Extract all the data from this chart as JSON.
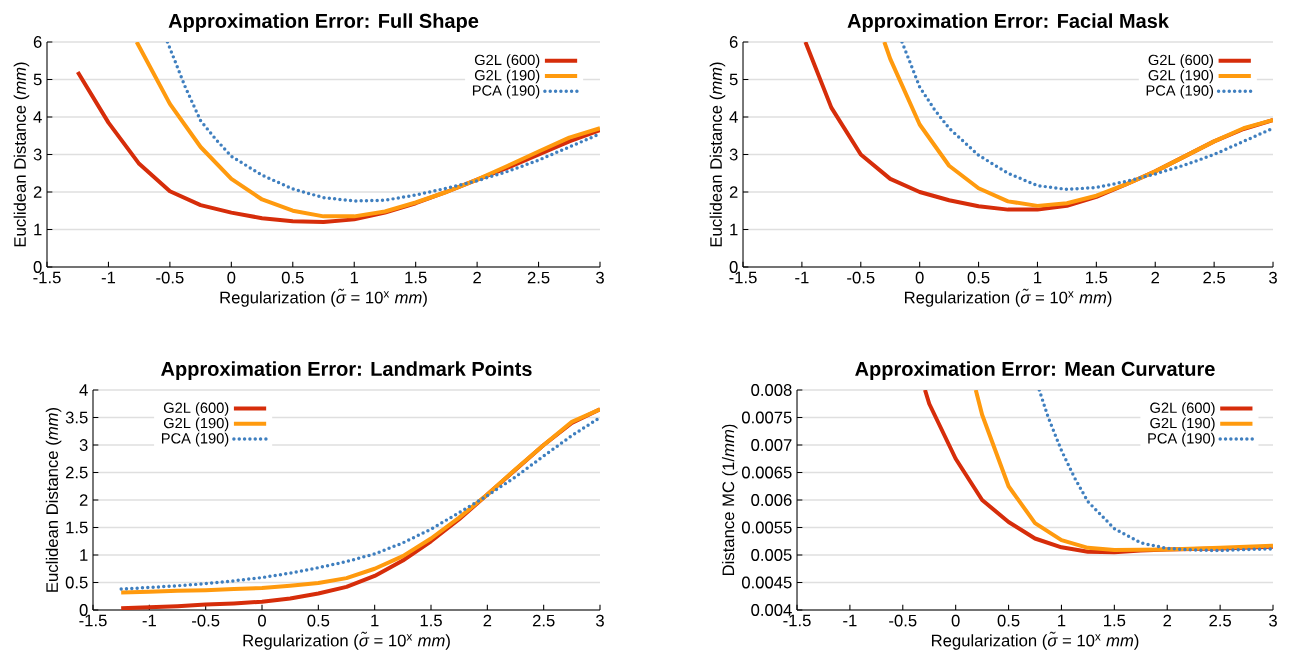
{
  "chart_data": [
    {
      "type": "line",
      "title": "Approximation Error: Full Shape",
      "xlabel": "Regularization (*σ̃* = 10$^{x}$ *mm*)",
      "ylabel": "Euclidean Distance (*mm*)",
      "xlim": [
        -1.5,
        3
      ],
      "ylim": [
        0,
        6
      ],
      "xticks": [
        -1.5,
        -1,
        -0.5,
        0,
        0.5,
        1,
        1.5,
        2,
        2.5,
        3
      ],
      "yticks": [
        0,
        1,
        2,
        3,
        4,
        5,
        6
      ],
      "grid": "y",
      "legend": "top right",
      "series": [
        {
          "name": "G2L (600)",
          "color": "#d62d0a",
          "line_style": "solid",
          "x": [
            -1.25,
            -1,
            -0.75,
            -0.5,
            -0.25,
            0,
            0.25,
            0.5,
            0.75,
            1,
            1.25,
            1.5,
            1.75,
            2,
            2.25,
            2.5,
            2.75,
            3
          ],
          "values": [
            5.2,
            3.85,
            2.75,
            2.02,
            1.65,
            1.45,
            1.3,
            1.22,
            1.2,
            1.27,
            1.45,
            1.7,
            2.0,
            2.33,
            2.65,
            3.0,
            3.35,
            3.65
          ]
        },
        {
          "name": "G2L (190)",
          "color": "#ff9a0e",
          "line_style": "solid",
          "x": [
            -0.77,
            -0.5,
            -0.25,
            0,
            0.25,
            0.5,
            0.75,
            1,
            1.25,
            1.5,
            1.75,
            2,
            2.25,
            2.5,
            2.75,
            3
          ],
          "values": [
            6,
            4.35,
            3.2,
            2.35,
            1.8,
            1.5,
            1.35,
            1.35,
            1.48,
            1.72,
            2.0,
            2.33,
            2.7,
            3.08,
            3.45,
            3.7
          ]
        },
        {
          "name": "PCA (190)",
          "color": "#3f7fbf",
          "line_style": "dotted",
          "x": [
            -0.52,
            -0.375,
            -0.25,
            -0.125,
            0,
            0.25,
            0.5,
            0.75,
            1,
            1.25,
            1.5,
            1.75,
            2,
            2.25,
            2.5,
            2.75,
            3
          ],
          "values": [
            6,
            4.8,
            3.9,
            3.4,
            2.95,
            2.45,
            2.08,
            1.85,
            1.76,
            1.78,
            1.92,
            2.1,
            2.3,
            2.55,
            2.85,
            3.2,
            3.55
          ]
        }
      ]
    },
    {
      "type": "line",
      "title": "Approximation Error: Facial Mask",
      "xlabel": "Regularization (*σ̃* = 10$^{x}$ *mm*)",
      "ylabel": "Euclidean Distance (*mm*)",
      "xlim": [
        -1.5,
        3
      ],
      "ylim": [
        0,
        6
      ],
      "xticks": [
        -1.5,
        -1,
        -0.5,
        0,
        0.5,
        1,
        1.5,
        2,
        2.5,
        3
      ],
      "yticks": [
        0,
        1,
        2,
        3,
        4,
        5,
        6
      ],
      "grid": "y",
      "legend": "top right",
      "series": [
        {
          "name": "G2L (600)",
          "color": "#d62d0a",
          "line_style": "solid",
          "x": [
            -0.97,
            -0.75,
            -0.5,
            -0.25,
            0,
            0.25,
            0.5,
            0.75,
            1,
            1.25,
            1.5,
            1.75,
            2,
            2.25,
            2.5,
            2.75,
            3
          ],
          "values": [
            6,
            4.25,
            3.0,
            2.35,
            2.0,
            1.78,
            1.62,
            1.53,
            1.53,
            1.63,
            1.87,
            2.2,
            2.55,
            2.95,
            3.35,
            3.68,
            3.92
          ]
        },
        {
          "name": "G2L (190)",
          "color": "#ff9a0e",
          "line_style": "solid",
          "x": [
            -0.3,
            -0.25,
            0,
            0.25,
            0.5,
            0.75,
            1,
            1.25,
            1.5,
            1.75,
            2,
            2.25,
            2.5,
            2.75,
            3
          ],
          "values": [
            6,
            5.55,
            3.8,
            2.7,
            2.1,
            1.75,
            1.63,
            1.7,
            1.9,
            2.2,
            2.55,
            2.95,
            3.35,
            3.7,
            3.92
          ]
        },
        {
          "name": "PCA (190)",
          "color": "#3f7fbf",
          "line_style": "dotted",
          "x": [
            -0.15,
            -0.125,
            0,
            0.125,
            0.25,
            0.5,
            0.75,
            1,
            1.25,
            1.5,
            1.75,
            2,
            2.25,
            2.5,
            2.75,
            3
          ],
          "values": [
            6,
            5.8,
            4.8,
            4.2,
            3.7,
            2.98,
            2.5,
            2.17,
            2.07,
            2.12,
            2.28,
            2.48,
            2.72,
            3.0,
            3.35,
            3.7
          ]
        }
      ]
    },
    {
      "type": "line",
      "title": "Approximation Error: Landmark Points",
      "xlabel": "Regularization (*σ̃* = 10$^{x}$ *mm*)",
      "ylabel": "Euclidean Distance (*mm*)",
      "xlim": [
        -1.5,
        3
      ],
      "ylim": [
        0,
        4
      ],
      "xticks": [
        -1.5,
        -1,
        -0.5,
        0,
        0.5,
        1,
        1.5,
        2,
        2.5,
        3
      ],
      "yticks": [
        0,
        0.5,
        1,
        1.5,
        2,
        2.5,
        3,
        3.5,
        4
      ],
      "grid": "y",
      "legend": "top left",
      "series": [
        {
          "name": "G2L (600)",
          "color": "#d62d0a",
          "line_style": "solid",
          "x": [
            -1.25,
            -1,
            -0.75,
            -0.5,
            -0.25,
            0,
            0.25,
            0.5,
            0.75,
            1,
            1.25,
            1.5,
            1.75,
            2,
            2.25,
            2.5,
            2.75,
            3
          ],
          "values": [
            0.03,
            0.05,
            0.07,
            0.1,
            0.12,
            0.15,
            0.21,
            0.3,
            0.42,
            0.62,
            0.9,
            1.25,
            1.65,
            2.1,
            2.55,
            3.0,
            3.4,
            3.65
          ]
        },
        {
          "name": "G2L (190)",
          "color": "#ff9a0e",
          "line_style": "solid",
          "x": [
            -1.25,
            -1,
            -0.75,
            -0.5,
            -0.25,
            0,
            0.25,
            0.5,
            0.75,
            1,
            1.25,
            1.5,
            1.75,
            2,
            2.25,
            2.5,
            2.75,
            3
          ],
          "values": [
            0.32,
            0.33,
            0.35,
            0.36,
            0.38,
            0.4,
            0.44,
            0.49,
            0.58,
            0.75,
            0.98,
            1.3,
            1.68,
            2.1,
            2.56,
            3.0,
            3.42,
            3.65
          ]
        },
        {
          "name": "PCA (190)",
          "color": "#3f7fbf",
          "line_style": "dotted",
          "x": [
            -1.25,
            -1,
            -0.75,
            -0.5,
            -0.25,
            0,
            0.25,
            0.5,
            0.75,
            1,
            1.25,
            1.5,
            1.75,
            2,
            2.25,
            2.5,
            2.75,
            3
          ],
          "values": [
            0.38,
            0.41,
            0.44,
            0.48,
            0.53,
            0.59,
            0.67,
            0.77,
            0.88,
            1.02,
            1.22,
            1.47,
            1.77,
            2.08,
            2.42,
            2.8,
            3.17,
            3.5
          ]
        }
      ]
    },
    {
      "type": "line",
      "title": "Approximation Error: Mean Curvature",
      "xlabel": "Regularization (*σ̃* = 10$^{x}$ *mm*)",
      "ylabel": "Distance MC (1/*mm*)",
      "xlim": [
        -1.5,
        3
      ],
      "ylim": [
        0.004,
        0.008
      ],
      "xticks": [
        -1.5,
        -1,
        -0.5,
        0,
        0.5,
        1,
        1.5,
        2,
        2.5,
        3
      ],
      "yticks": [
        0.004,
        0.0045,
        0.005,
        0.0055,
        0.006,
        0.0065,
        0.007,
        0.0075,
        0.008
      ],
      "grid": "y",
      "legend": "top right",
      "series": [
        {
          "name": "G2L (600)",
          "color": "#d62d0a",
          "line_style": "solid",
          "x": [
            -0.29,
            -0.25,
            0,
            0.25,
            0.5,
            0.75,
            1,
            1.25,
            1.5,
            1.75,
            2,
            2.5,
            3
          ],
          "values": [
            0.008,
            0.00775,
            0.00675,
            0.006,
            0.0056,
            0.0053,
            0.00514,
            0.00506,
            0.00505,
            0.00508,
            0.0051,
            0.00512,
            0.00515
          ]
        },
        {
          "name": "G2L (190)",
          "color": "#ff9a0e",
          "line_style": "solid",
          "x": [
            0.19,
            0.25,
            0.5,
            0.75,
            1,
            1.25,
            1.5,
            2,
            2.5,
            3
          ],
          "values": [
            0.008,
            0.00755,
            0.00625,
            0.00558,
            0.00527,
            0.00513,
            0.00509,
            0.0051,
            0.00513,
            0.00517
          ]
        },
        {
          "name": "PCA (190)",
          "color": "#3f7fbf",
          "line_style": "dotted",
          "x": [
            0.79,
            0.875,
            1,
            1.125,
            1.25,
            1.5,
            1.75,
            2,
            2.25,
            2.5,
            2.75,
            3
          ],
          "values": [
            0.008,
            0.0075,
            0.0069,
            0.0064,
            0.00597,
            0.00548,
            0.00522,
            0.00512,
            0.00509,
            0.00508,
            0.0051,
            0.00511
          ]
        }
      ]
    }
  ]
}
